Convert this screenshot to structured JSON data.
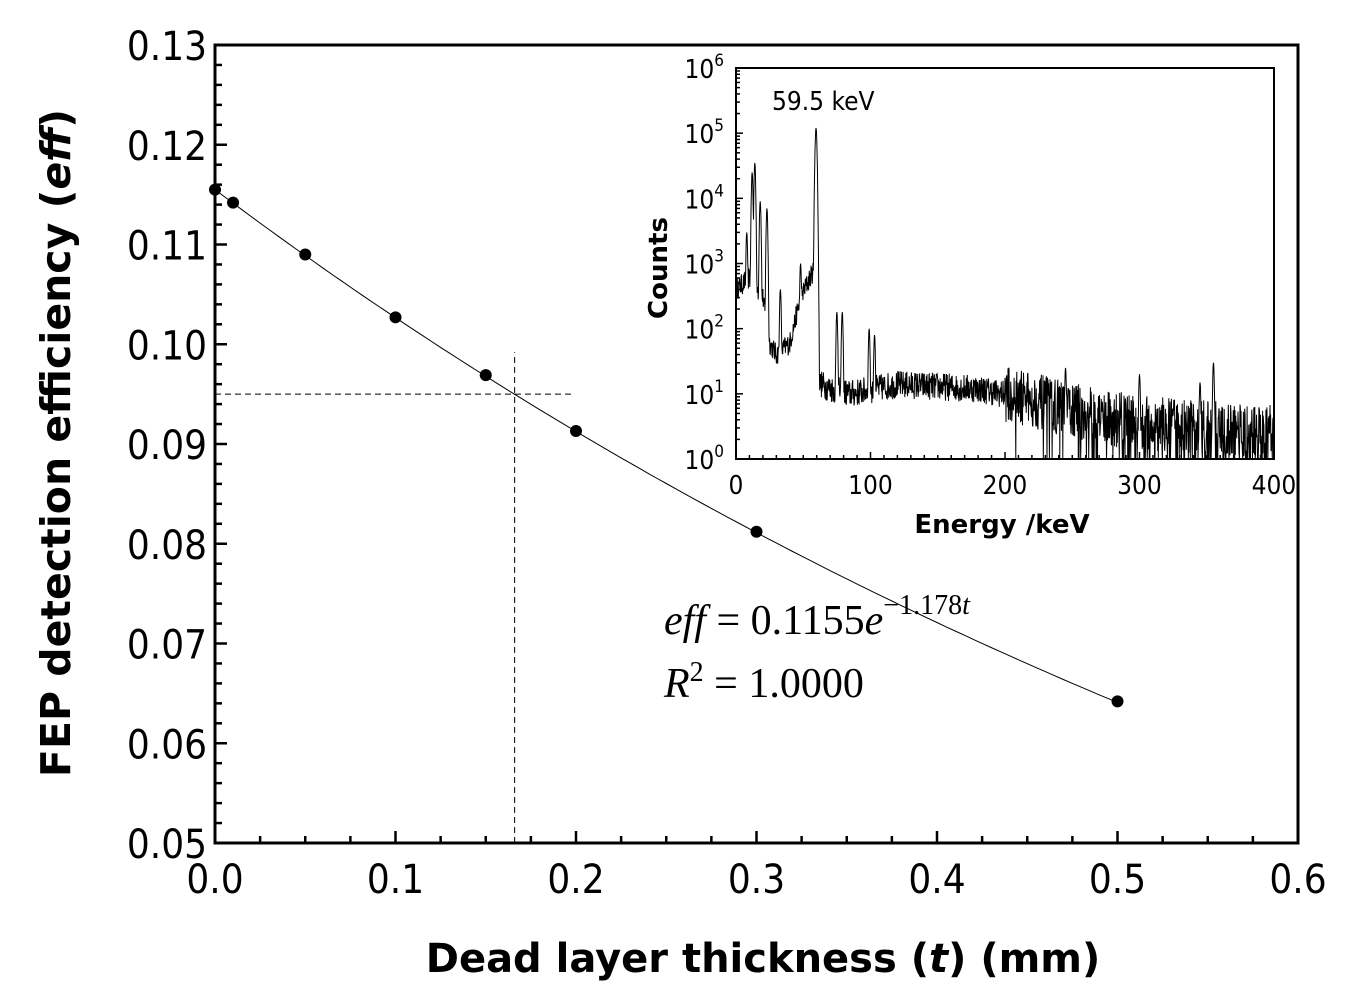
{
  "chart_data": [
    {
      "type": "scatter",
      "xlabel_parts": [
        "Dead layer thickness (",
        "t",
        ") (mm)"
      ],
      "ylabel_parts": [
        "FEP detection efficiency (",
        "eff",
        ")"
      ],
      "xlim": [
        0.0,
        0.6
      ],
      "ylim": [
        0.05,
        0.13
      ],
      "x_ticks": [
        "0.0",
        "0.1",
        "0.2",
        "0.3",
        "0.4",
        "0.5",
        "0.6"
      ],
      "y_ticks": [
        "0.05",
        "0.06",
        "0.07",
        "0.08",
        "0.09",
        "0.10",
        "0.11",
        "0.12",
        "0.13"
      ],
      "grid": false,
      "points": [
        {
          "x": 0.0,
          "y": 0.1155
        },
        {
          "x": 0.01,
          "y": 0.1142
        },
        {
          "x": 0.05,
          "y": 0.109
        },
        {
          "x": 0.1,
          "y": 0.1027
        },
        {
          "x": 0.15,
          "y": 0.0969
        },
        {
          "x": 0.2,
          "y": 0.0913
        },
        {
          "x": 0.3,
          "y": 0.0812
        },
        {
          "x": 0.5,
          "y": 0.0642
        }
      ],
      "fit": {
        "a": 0.1155,
        "b": -1.178,
        "x_range": [
          0.0,
          0.5
        ]
      },
      "equation": {
        "lhs": "eff",
        "eq": " = 0.1155",
        "e": "e",
        "exponent": "−1.178",
        "exp_var": "t",
        "r2_lhs": "R",
        "r2_sup": "2",
        "r2_rhs": " = 1.0000"
      },
      "reference_lines": {
        "efficiency": 0.095,
        "thickness": 0.166,
        "horizontal_x_end": 0.198,
        "vertical_y_end": 0.0992
      }
    },
    {
      "type": "line",
      "xlabel": "Energy /keV",
      "ylabel": "Counts",
      "xlim": [
        0,
        400
      ],
      "ylim": [
        1,
        1000000
      ],
      "yscale": "log",
      "x_ticks": [
        "0",
        "100",
        "200",
        "300",
        "400"
      ],
      "y_ticks": [
        {
          "base": "10",
          "exp": "0"
        },
        {
          "base": "10",
          "exp": "1"
        },
        {
          "base": "10",
          "exp": "2"
        },
        {
          "base": "10",
          "exp": "3"
        },
        {
          "base": "10",
          "exp": "4"
        },
        {
          "base": "10",
          "exp": "5"
        },
        {
          "base": "10",
          "exp": "6"
        }
      ],
      "annotation": "59.5 keV",
      "baseline": [
        [
          0,
          400
        ],
        [
          10,
          600
        ],
        [
          20,
          300
        ],
        [
          25,
          60
        ],
        [
          30,
          40
        ],
        [
          40,
          60
        ],
        [
          48,
          300
        ],
        [
          55,
          600
        ],
        [
          59,
          900
        ],
        [
          61,
          15
        ],
        [
          70,
          12
        ],
        [
          85,
          10
        ],
        [
          120,
          14
        ],
        [
          180,
          12
        ],
        [
          220,
          8
        ],
        [
          260,
          5
        ],
        [
          300,
          3.5
        ],
        [
          400,
          2.5
        ]
      ],
      "peaks": [
        [
          8,
          3000
        ],
        [
          12,
          25000
        ],
        [
          14,
          35000
        ],
        [
          18,
          9000
        ],
        [
          23,
          7000
        ],
        [
          33,
          400
        ],
        [
          48,
          1000
        ],
        [
          59.5,
          120000
        ],
        [
          75,
          180
        ],
        [
          79,
          180
        ],
        [
          99,
          100
        ],
        [
          103,
          80
        ],
        [
          245,
          25
        ],
        [
          300,
          20
        ],
        [
          345,
          15
        ],
        [
          355,
          30
        ]
      ]
    }
  ]
}
